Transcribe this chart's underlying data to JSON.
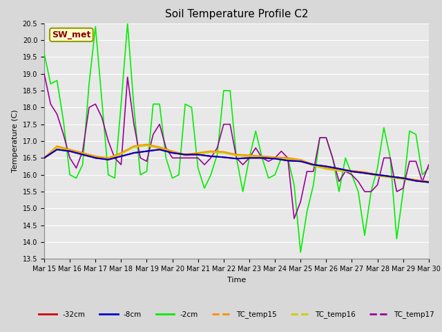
{
  "title": "Soil Temperature Profile C2",
  "xlabel": "Time",
  "ylabel": "Temperature (C)",
  "ylim": [
    13.5,
    20.5
  ],
  "xlim": [
    0,
    15
  ],
  "annotation_text": "SW_met",
  "annotation_color": "#8B0000",
  "annotation_bg": "#FFFFCC",
  "annotation_border": "#999900",
  "xtick_labels": [
    "Mar 15",
    "Mar 16",
    "Mar 17",
    "Mar 18",
    "Mar 19",
    "Mar 20",
    "Mar 21",
    "Mar 22",
    "Mar 23",
    "Mar 24",
    "Mar 25",
    "Mar 26",
    "Mar 27",
    "Mar 28",
    "Mar 29",
    "Mar 30"
  ],
  "bg_color": "#E8E8E8",
  "grid_color": "#FFFFFF",
  "line_colors": {
    "32cm": "#CC0000",
    "8cm": "#0000CC",
    "2cm": "#00EE00",
    "tc15": "#FF8C00",
    "tc16": "#CCCC00",
    "tc17": "#990099"
  },
  "x_32cm": [
    0,
    0.5,
    1,
    1.5,
    2,
    2.5,
    3,
    3.5,
    4,
    4.5,
    5,
    5.5,
    6,
    6.5,
    7,
    7.5,
    8,
    8.5,
    9,
    9.5,
    10,
    10.5,
    11,
    11.5,
    12,
    12.5,
    13,
    13.5,
    14,
    14.5,
    15
  ],
  "y_32cm": [
    16.5,
    16.75,
    16.7,
    16.6,
    16.5,
    16.45,
    16.55,
    16.65,
    16.7,
    16.75,
    16.65,
    16.6,
    16.6,
    16.55,
    16.52,
    16.48,
    16.5,
    16.5,
    16.48,
    16.42,
    16.4,
    16.3,
    16.25,
    16.18,
    16.1,
    16.05,
    16.0,
    15.95,
    15.9,
    15.82,
    15.78
  ],
  "x_8cm": [
    0,
    0.5,
    1,
    1.5,
    2,
    2.5,
    3,
    3.5,
    4,
    4.5,
    5,
    5.5,
    6,
    6.5,
    7,
    7.5,
    8,
    8.5,
    9,
    9.5,
    10,
    10.5,
    11,
    11.5,
    12,
    12.5,
    13,
    13.5,
    14,
    14.5,
    15
  ],
  "y_8cm": [
    16.5,
    16.75,
    16.7,
    16.6,
    16.5,
    16.45,
    16.55,
    16.65,
    16.7,
    16.75,
    16.65,
    16.6,
    16.6,
    16.55,
    16.52,
    16.48,
    16.5,
    16.5,
    16.48,
    16.42,
    16.4,
    16.3,
    16.25,
    16.18,
    16.1,
    16.05,
    16.0,
    15.95,
    15.9,
    15.82,
    15.78
  ],
  "x_2cm": [
    0,
    0.25,
    0.5,
    0.75,
    1,
    1.25,
    1.5,
    1.75,
    2,
    2.25,
    2.5,
    2.75,
    3,
    3.25,
    3.5,
    3.75,
    4,
    4.25,
    4.5,
    4.75,
    5,
    5.25,
    5.5,
    5.75,
    6,
    6.25,
    6.5,
    6.75,
    7,
    7.25,
    7.5,
    7.75,
    8,
    8.25,
    8.5,
    8.75,
    9,
    9.25,
    9.5,
    9.75,
    10,
    10.25,
    10.5,
    10.75,
    11,
    11.25,
    11.5,
    11.75,
    12,
    12.25,
    12.5,
    12.75,
    13,
    13.25,
    13.5,
    13.75,
    14,
    14.25,
    14.5,
    14.75,
    15
  ],
  "y_2cm": [
    19.6,
    18.7,
    18.8,
    17.6,
    16.0,
    15.9,
    16.3,
    18.7,
    20.4,
    18.2,
    16.0,
    15.9,
    18.1,
    20.5,
    18.0,
    16.0,
    16.1,
    18.1,
    18.1,
    16.5,
    15.9,
    16.0,
    18.1,
    18.0,
    16.2,
    15.6,
    16.0,
    16.6,
    18.5,
    18.5,
    16.5,
    15.5,
    16.5,
    17.3,
    16.5,
    15.9,
    16.0,
    16.5,
    16.5,
    15.7,
    13.7,
    14.9,
    15.7,
    17.1,
    17.1,
    16.5,
    15.5,
    16.5,
    16.0,
    15.5,
    14.2,
    15.5,
    16.2,
    17.4,
    16.5,
    14.1,
    15.5,
    17.3,
    17.2,
    16.0,
    16.2
  ],
  "x_tc15": [
    0,
    0.5,
    1,
    1.5,
    2,
    2.5,
    3,
    3.5,
    4,
    4.5,
    5,
    5.5,
    6,
    6.5,
    7,
    7.5,
    8,
    8.5,
    9,
    9.5,
    10,
    10.5,
    11,
    11.5,
    12,
    12.5,
    13,
    13.5,
    14,
    14.5,
    15
  ],
  "y_tc15": [
    16.5,
    16.85,
    16.75,
    16.65,
    16.55,
    16.5,
    16.65,
    16.85,
    16.9,
    16.82,
    16.7,
    16.6,
    16.65,
    16.7,
    16.68,
    16.6,
    16.58,
    16.55,
    16.52,
    16.5,
    16.45,
    16.3,
    16.2,
    16.15,
    16.12,
    16.08,
    16.0,
    15.95,
    15.9,
    15.85,
    15.8
  ],
  "x_tc16": [
    0,
    0.5,
    1,
    1.5,
    2,
    2.5,
    3,
    3.5,
    4,
    4.5,
    5,
    5.5,
    6,
    6.5,
    7,
    7.5,
    8,
    8.5,
    9,
    9.5,
    10,
    10.5,
    11,
    11.5,
    12,
    12.5,
    13,
    13.5,
    14,
    14.5,
    15
  ],
  "y_tc16": [
    16.48,
    16.82,
    16.72,
    16.62,
    16.52,
    16.47,
    16.62,
    16.82,
    16.87,
    16.79,
    16.67,
    16.57,
    16.62,
    16.67,
    16.65,
    16.57,
    16.55,
    16.52,
    16.49,
    16.47,
    16.42,
    16.27,
    16.17,
    16.12,
    16.09,
    16.05,
    15.97,
    15.92,
    15.87,
    15.82,
    15.77
  ],
  "x_tc17": [
    0,
    0.25,
    0.5,
    0.75,
    1,
    1.25,
    1.5,
    1.75,
    2,
    2.25,
    2.5,
    2.75,
    3,
    3.25,
    3.5,
    3.75,
    4,
    4.25,
    4.5,
    4.75,
    5,
    5.25,
    5.5,
    5.75,
    6,
    6.25,
    6.5,
    6.75,
    7,
    7.25,
    7.5,
    7.75,
    8,
    8.25,
    8.5,
    8.75,
    9,
    9.25,
    9.5,
    9.75,
    10,
    10.25,
    10.5,
    10.75,
    11,
    11.25,
    11.5,
    11.75,
    12,
    12.25,
    12.5,
    12.75,
    13,
    13.25,
    13.5,
    13.75,
    14,
    14.25,
    14.5,
    14.75,
    15
  ],
  "y_tc17": [
    19.0,
    18.1,
    17.8,
    17.2,
    16.5,
    16.2,
    16.7,
    18.0,
    18.1,
    17.7,
    17.0,
    16.5,
    16.3,
    18.9,
    17.5,
    16.5,
    16.4,
    17.2,
    17.5,
    16.8,
    16.5,
    16.5,
    16.5,
    16.5,
    16.5,
    16.3,
    16.5,
    16.8,
    17.5,
    17.5,
    16.5,
    16.3,
    16.5,
    16.8,
    16.5,
    16.4,
    16.5,
    16.7,
    16.5,
    14.7,
    15.2,
    16.1,
    16.1,
    17.1,
    17.1,
    16.5,
    15.8,
    16.1,
    16.0,
    15.8,
    15.5,
    15.5,
    15.7,
    16.5,
    16.5,
    15.5,
    15.6,
    16.4,
    16.4,
    15.8,
    16.3
  ]
}
